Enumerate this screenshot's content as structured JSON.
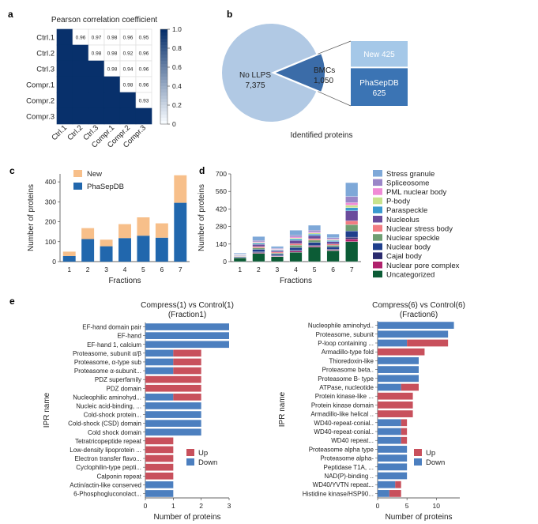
{
  "panels": {
    "a": "a",
    "b": "b",
    "c": "c",
    "d": "d",
    "e": "e"
  },
  "colors": {
    "new": "#f7bf8a",
    "phasepdb": "#2167ad",
    "up": "#c8505c",
    "down": "#4c7fbf",
    "pie_main": "#b1c9e4",
    "pie_bmc": "#3b6ca8",
    "box_new": "#a5c8e8",
    "box_phasepdb": "#3b74b4"
  },
  "chart_data": [
    {
      "id": "a",
      "type": "heatmap",
      "title": "Pearson correlation coefficient",
      "rows": [
        "Ctrl.1",
        "Ctrl.2",
        "Ctrl.3",
        "Compr.1",
        "Compr.2",
        "Compr.3"
      ],
      "cols": [
        "Ctrl.1",
        "Ctrl.2",
        "Ctrl.3",
        "Compr.1",
        "Compr.2",
        "Compr.3"
      ],
      "upper_labels": [
        [
          "",
          "0.96",
          "0.97",
          "0.98",
          "0.96",
          "0.95"
        ],
        [
          "",
          "",
          "0.98",
          "0.98",
          "0.92",
          "0.96"
        ],
        [
          "",
          "",
          "",
          "0.98",
          "0.94",
          "0.96"
        ],
        [
          "",
          "",
          "",
          "",
          "0.98",
          "0.96"
        ],
        [
          "",
          "",
          "",
          "",
          "",
          "0.93"
        ],
        [
          "",
          "",
          "",
          "",
          "",
          ""
        ]
      ],
      "colorbar": {
        "ticks": [
          "0",
          "0.2",
          "0.4",
          "0.6",
          "0.8",
          "1.0"
        ],
        "range": [
          0,
          1
        ]
      }
    },
    {
      "id": "b",
      "type": "pie",
      "caption": "Identified proteins",
      "slices": [
        {
          "label": "No LLPS",
          "value_label": "7,375",
          "value": 7375
        },
        {
          "label": "BMCs",
          "value_label": "1,050",
          "value": 1050
        }
      ],
      "breakdown": [
        {
          "label": "New",
          "value_label": "425",
          "value": 425
        },
        {
          "label": "PhaSepDB",
          "value_label": "625",
          "value": 625
        }
      ]
    },
    {
      "id": "c",
      "type": "bar",
      "stacked": true,
      "categories": [
        "1",
        "2",
        "3",
        "4",
        "5",
        "6",
        "7"
      ],
      "series": [
        {
          "name": "New",
          "values": [
            22,
            55,
            33,
            70,
            92,
            72,
            138
          ]
        },
        {
          "name": "PhaSepDB",
          "values": [
            28,
            113,
            77,
            118,
            130,
            120,
            295
          ]
        }
      ],
      "xlabel": "Fractions",
      "ylabel": "Number of proteins",
      "ylim": [
        0,
        440
      ],
      "yticks": [
        "0",
        "100",
        "200",
        "300",
        "400"
      ]
    },
    {
      "id": "d",
      "type": "bar",
      "stacked": true,
      "categories": [
        "1",
        "2",
        "3",
        "4",
        "5",
        "6",
        "7"
      ],
      "series": [
        {
          "name": "Stress granule",
          "values": [
            8,
            32,
            15,
            40,
            40,
            30,
            110
          ]
        },
        {
          "name": "Spliceosome",
          "values": [
            3,
            10,
            6,
            14,
            14,
            10,
            50
          ]
        },
        {
          "name": "PML nuclear body",
          "values": [
            2,
            6,
            4,
            8,
            8,
            6,
            20
          ]
        },
        {
          "name": "P-body",
          "values": [
            2,
            6,
            4,
            8,
            8,
            6,
            20
          ]
        },
        {
          "name": "Paraspeckle",
          "values": [
            3,
            8,
            5,
            12,
            12,
            8,
            25
          ]
        },
        {
          "name": "Nucleolus",
          "values": [
            5,
            18,
            12,
            25,
            25,
            20,
            80
          ]
        },
        {
          "name": "Nuclear stress body",
          "values": [
            3,
            10,
            8,
            12,
            12,
            10,
            30
          ]
        },
        {
          "name": "Nuclear speckle",
          "values": [
            3,
            12,
            8,
            18,
            18,
            12,
            50
          ]
        },
        {
          "name": "Nuclear body",
          "values": [
            5,
            20,
            12,
            22,
            22,
            18,
            50
          ]
        },
        {
          "name": "Cajal body",
          "values": [
            2,
            6,
            4,
            8,
            8,
            6,
            15
          ]
        },
        {
          "name": "Nuclear pore complex",
          "values": [
            2,
            6,
            4,
            8,
            8,
            6,
            20
          ]
        },
        {
          "name": "Uncategorized",
          "values": [
            30,
            66,
            40,
            75,
            115,
            88,
            160
          ]
        }
      ],
      "xlabel": "Fractions",
      "ylabel": "Number of proteins",
      "ylim": [
        0,
        700
      ],
      "yticks": [
        "0",
        "140",
        "280",
        "420",
        "560",
        "700"
      ]
    },
    {
      "id": "e1",
      "type": "bar",
      "orientation": "horizontal",
      "stacked": true,
      "title": "Compress(1) vs Control(1)",
      "subtitle": "(Fraction1)",
      "categories": [
        "EF-hand domain pair",
        "EF-hand",
        "EF-hand 1, calcium",
        "Proteasome, subunit α/β",
        "Proteasome, α-type sub",
        "Proteasome α-subunit...",
        "PDZ superfamily",
        "PDZ domain",
        "Nucleophilic aminohyd...",
        "Nucleic acid-binding, ...",
        "Cold-shock protein...",
        "Cold-shock (CSD) domain",
        "Cold shock domain",
        "Tetratricopeptide repeat",
        "Low-density lipoprotein ...",
        "Electron transfer flavo...",
        "Cyclophilin-type pepti...",
        "Calponin repeat",
        "Actin/actin-like conserved",
        "6-Phosphogluconolact..."
      ],
      "series": [
        {
          "name": "Up",
          "values": [
            0,
            0,
            0,
            1,
            1,
            1,
            2,
            2,
            1,
            0,
            0,
            0,
            0,
            1,
            1,
            1,
            1,
            1,
            0,
            0
          ]
        },
        {
          "name": "Down",
          "values": [
            3,
            3,
            3,
            1,
            1,
            1,
            0,
            0,
            1,
            2,
            2,
            2,
            2,
            0,
            0,
            0,
            0,
            0,
            1,
            1
          ]
        }
      ],
      "xlabel": "Number of proteins",
      "ylabel": "IPR name",
      "xlim": [
        0,
        3
      ],
      "xticks": [
        "0",
        "1",
        "2",
        "3"
      ],
      "legend": "right"
    },
    {
      "id": "e2",
      "type": "bar",
      "orientation": "horizontal",
      "stacked": true,
      "title": "Compress(6) vs Control(6)",
      "subtitle": "(Fraction6)",
      "categories": [
        "Nucleophile aminohyd..",
        "Proteasome, subunit",
        "P-loop containing ...",
        "Armadillo-type fold",
        "Thioredoxin-like",
        "Proteasome beta..",
        "Proteasome B- type",
        "ATPase, nucleotide",
        "Protein kinase-like ...",
        "Protein kinase domain",
        "Armadillo-like helical ..",
        "WD40-repeat-conial..",
        "WD40-repeat-conial..",
        "WD40 repeat...",
        "Proteasome alpha type",
        "Proteasome alpha-",
        "Peptidase T1A, ...",
        "NAD(P)-binding ..",
        "WD40/YVTN repeat...",
        "Histidine kinase/HSP90..."
      ],
      "series": [
        {
          "name": "Up",
          "values": [
            0,
            0,
            7,
            8,
            0,
            0,
            0,
            3,
            6,
            6,
            6,
            1,
            1,
            1,
            0,
            0,
            0,
            0,
            1,
            2
          ]
        },
        {
          "name": "Down",
          "values": [
            13,
            12,
            5,
            0,
            7,
            7,
            7,
            4,
            0,
            0,
            0,
            4,
            4,
            4,
            5,
            5,
            5,
            5,
            3,
            2
          ]
        }
      ],
      "xlabel": "Number of proteins",
      "ylabel": "IPR name",
      "xlim": [
        0,
        14
      ],
      "xticks": [
        "0",
        "5",
        "10"
      ],
      "legend": "right"
    }
  ]
}
